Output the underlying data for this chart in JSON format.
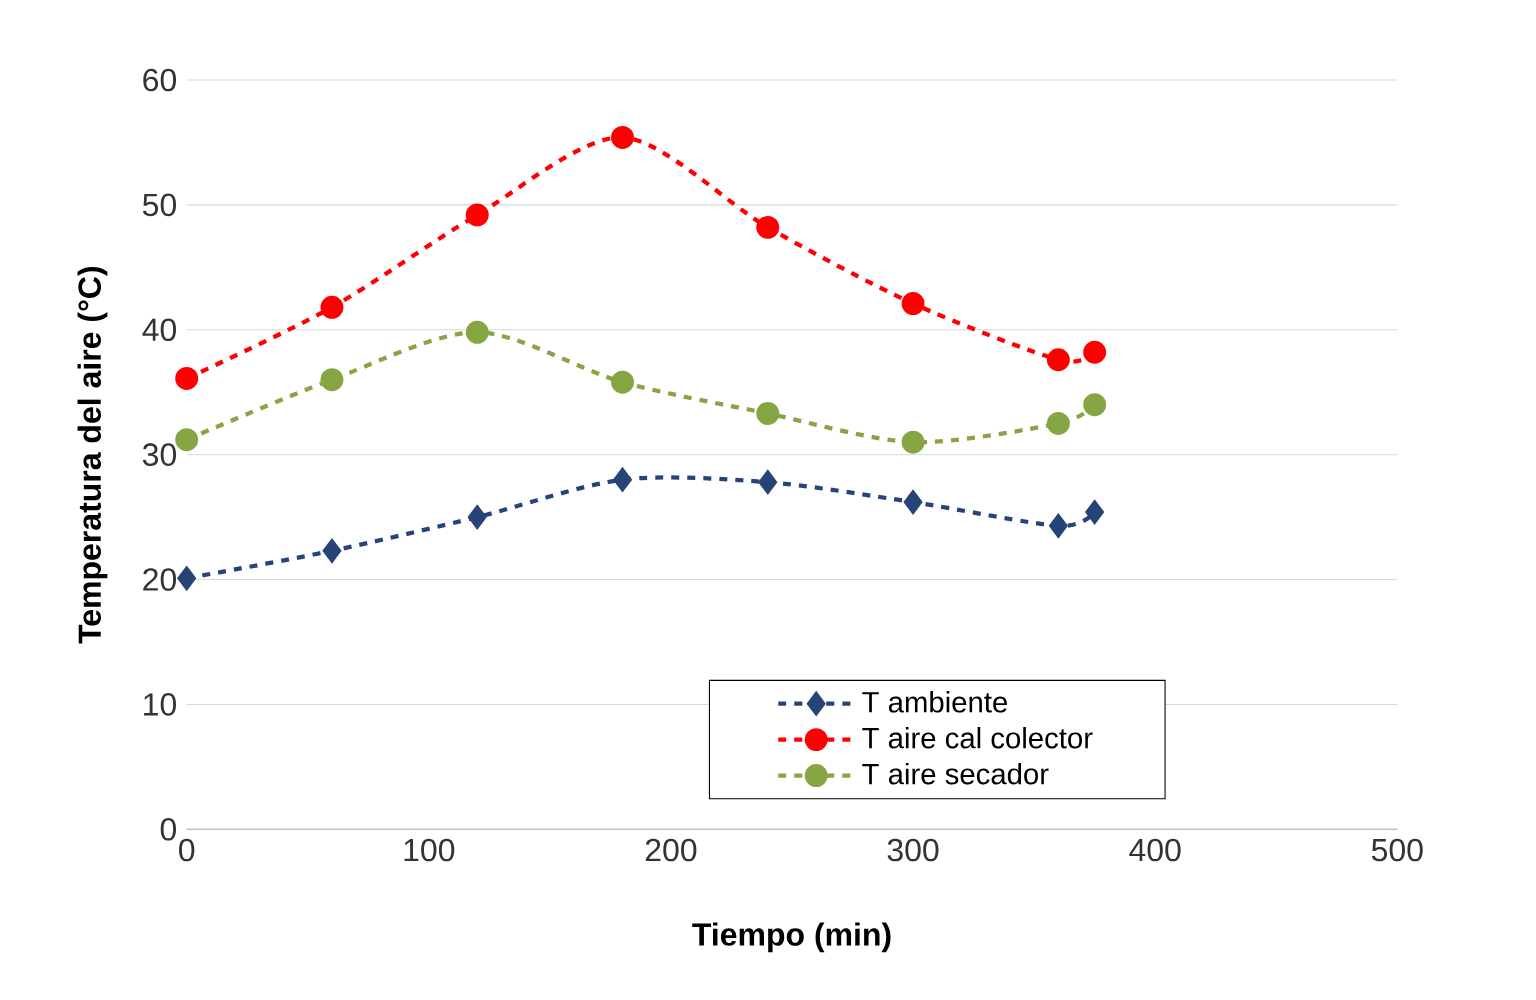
{
  "chart_data": {
    "type": "line",
    "xlabel": "Tiempo (min)",
    "ylabel": "Temperatura del aire (°C)",
    "x": [
      0,
      60,
      120,
      180,
      240,
      300,
      360,
      375
    ],
    "series": [
      {
        "name": "T ambiente",
        "color": "#264478",
        "marker": "diamond",
        "line_style": "dashed",
        "values": [
          20.1,
          22.3,
          25.0,
          28.0,
          27.8,
          26.2,
          24.3,
          25.4
        ]
      },
      {
        "name": "T aire cal colector",
        "color": "#ff0000",
        "marker": "circle",
        "line_style": "dashed",
        "values": [
          36.1,
          41.8,
          49.2,
          55.4,
          48.2,
          42.1,
          37.6,
          38.2
        ]
      },
      {
        "name": "T aire secador",
        "color": "#86a644",
        "marker": "circle",
        "line_style": "dashed",
        "values": [
          31.2,
          36.0,
          39.8,
          35.8,
          33.3,
          31.0,
          32.5,
          34.0
        ]
      }
    ],
    "xlim": [
      0,
      500
    ],
    "xticks": [
      0,
      100,
      200,
      300,
      400,
      500
    ],
    "ylim": [
      0,
      60
    ],
    "yticks": [
      0,
      10,
      20,
      30,
      40,
      50,
      60
    ],
    "grid": "y",
    "legend": "bottom"
  }
}
